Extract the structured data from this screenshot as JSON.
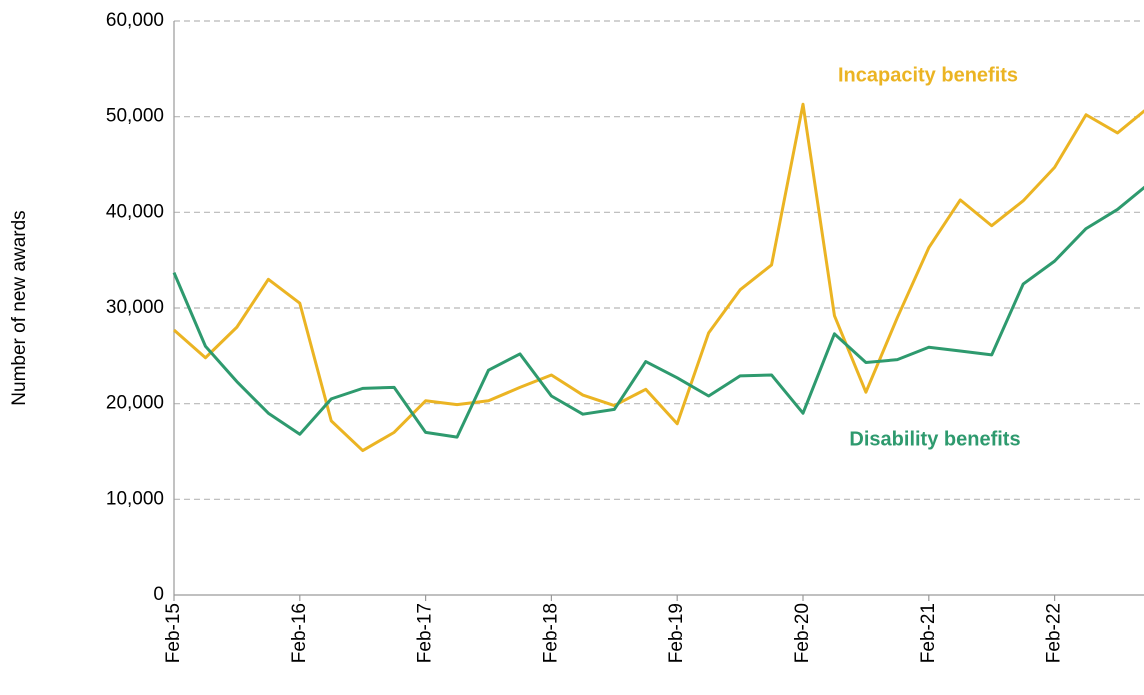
{
  "chart_data": {
    "type": "line",
    "y_label": "Number of new awards",
    "categories": [
      "Feb-15",
      null,
      null,
      null,
      "Feb-16",
      null,
      null,
      null,
      "Feb-17",
      null,
      null,
      null,
      "Feb-18",
      null,
      null,
      null,
      "Feb-19",
      null,
      null,
      null,
      "Feb-20",
      null,
      null,
      null,
      "Feb-21",
      null,
      null,
      null,
      "Feb-22",
      null,
      null,
      null
    ],
    "series": [
      {
        "name": "Incapacity benefits",
        "color": "#ebb423",
        "values": [
          27700,
          24800,
          28000,
          33000,
          30500,
          18200,
          15100,
          17000,
          20300,
          19900,
          20300,
          21700,
          23000,
          20900,
          19800,
          21500,
          17900,
          27400,
          31900,
          34500,
          51300,
          29200,
          21200,
          29000,
          36300,
          41300,
          38600,
          41200,
          44700,
          50200,
          48300,
          51000
        ]
      },
      {
        "name": "Disability benefits",
        "color": "#2e9a6e",
        "values": [
          33700,
          26000,
          22300,
          19000,
          16800,
          20500,
          21600,
          21700,
          17000,
          16500,
          23500,
          25200,
          20800,
          18900,
          19400,
          24400,
          22700,
          20800,
          22900,
          23000,
          19000,
          27300,
          24300,
          24600,
          25900,
          25500,
          25100,
          32500,
          34900,
          38300,
          40300,
          43000
        ]
      }
    ],
    "ylim": [
      0,
      60000
    ],
    "yticks": [
      0,
      {
        "value": 10000,
        "label": "10,000"
      },
      {
        "value": 20000,
        "label": "20,000"
      },
      {
        "value": 30000,
        "label": "30,000"
      },
      {
        "value": 40000,
        "label": "40,000"
      },
      {
        "value": 50000,
        "label": "50,000"
      },
      {
        "value": 60000,
        "label": "60,000"
      }
    ],
    "grid": true
  }
}
